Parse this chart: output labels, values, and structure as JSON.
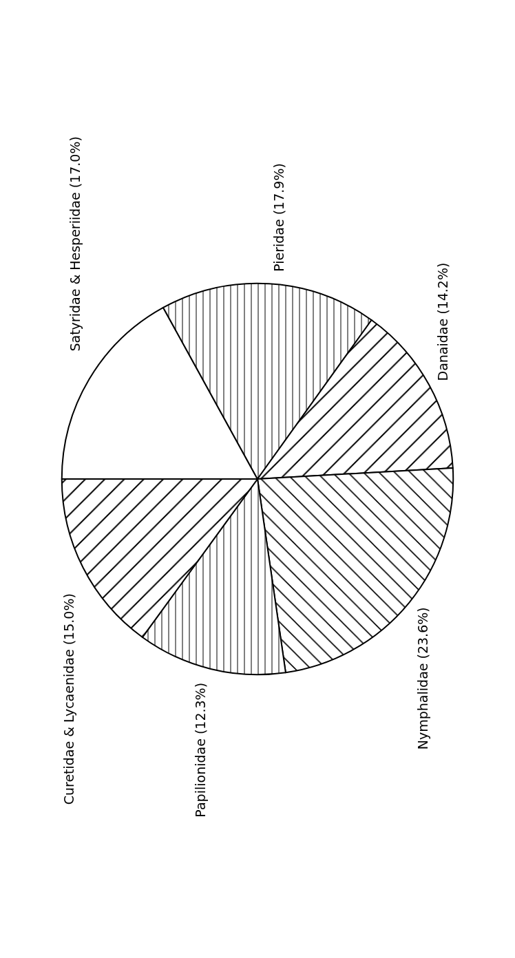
{
  "chart_data": {
    "type": "pie",
    "categories": [
      "Satyridae & Hesperiidae",
      "Pieridae",
      "Danaidae",
      "Nymphalidae",
      "Papilionidae",
      "Curetidae & Lycaenidae"
    ],
    "values": [
      17.0,
      17.9,
      14.2,
      23.6,
      12.3,
      15.0
    ],
    "value_labels": [
      "(17.0%)",
      "(17.9%)",
      "(14.2%)",
      "(23.6%)",
      "(12.3%)",
      "(15.0%)"
    ],
    "colors": [
      "#ffffff",
      "#000000",
      "#000000",
      "#000000",
      "#000000",
      "#000000"
    ],
    "legend": false
  }
}
